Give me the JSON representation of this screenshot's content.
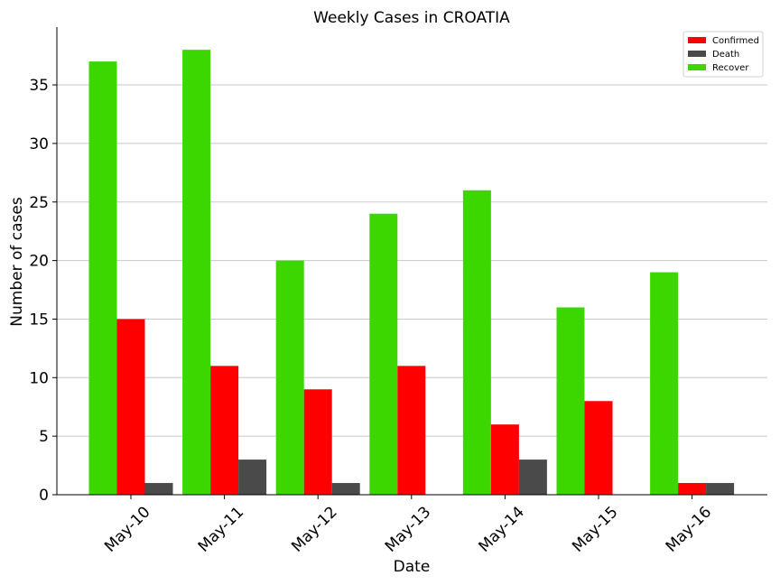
{
  "chart_data": {
    "type": "bar",
    "title": "Weekly Cases in CROATIA",
    "xlabel": "Date",
    "ylabel": "Number of cases",
    "categories": [
      "May-10",
      "May-11",
      "May-12",
      "May-13",
      "May-14",
      "May-15",
      "May-16"
    ],
    "series": [
      {
        "name": "Recover",
        "color": "#3dd700",
        "values": [
          37,
          38,
          20,
          24,
          26,
          16,
          19
        ]
      },
      {
        "name": "Confirmed",
        "color": "#ff0000",
        "values": [
          15,
          11,
          9,
          11,
          6,
          8,
          1
        ]
      },
      {
        "name": "Death",
        "color": "#4a4a4a",
        "values": [
          1,
          3,
          1,
          0,
          3,
          0,
          1
        ]
      }
    ],
    "legend_order": [
      "Confirmed",
      "Death",
      "Recover"
    ],
    "ylim": [
      0,
      40
    ],
    "yticks": [
      0,
      5,
      10,
      15,
      20,
      25,
      30,
      35
    ],
    "grid": "horizontal",
    "legend_position": "top-right"
  }
}
